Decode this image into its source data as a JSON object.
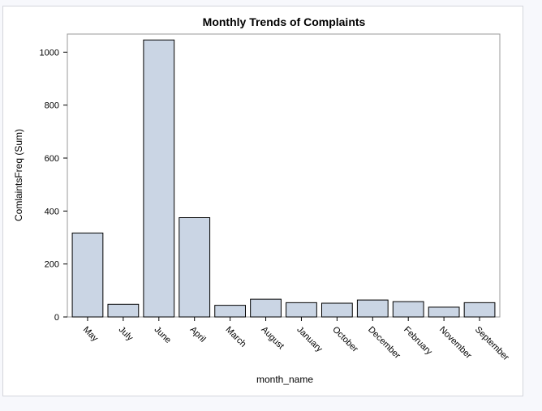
{
  "chart_data": {
    "type": "bar",
    "title": "Monthly Trends of Complaints",
    "xlabel": "month_name",
    "ylabel": "ComlaintsFreq (Sum)",
    "categories": [
      "May",
      "July",
      "June",
      "April",
      "March",
      "August",
      "January",
      "October",
      "December",
      "February",
      "November",
      "September"
    ],
    "values": [
      317,
      48,
      1046,
      375,
      44,
      67,
      54,
      52,
      64,
      58,
      37,
      54
    ],
    "ylim": [
      0,
      1050
    ],
    "yticks": [
      0,
      200,
      400,
      600,
      800,
      1000
    ],
    "grid": false,
    "bar_fill": "#cad5e4",
    "bar_stroke": "#000000"
  }
}
